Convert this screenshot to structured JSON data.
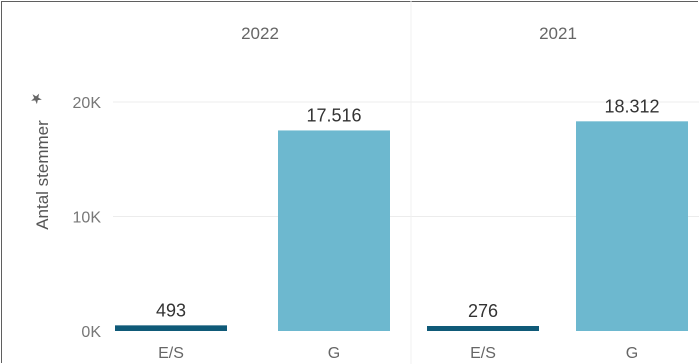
{
  "chart_data": {
    "type": "bar",
    "ylabel": "Antal stemmer",
    "ylim": [
      0,
      20000
    ],
    "yticks": [
      "0K",
      "10K",
      "20K"
    ],
    "groups": [
      {
        "name": "2022",
        "categories": [
          "E/S",
          "G"
        ],
        "values": [
          493,
          17516
        ],
        "labels": [
          "493",
          "17.516"
        ]
      },
      {
        "name": "2021",
        "categories": [
          "E/S",
          "G"
        ],
        "values": [
          276,
          18312
        ],
        "labels": [
          "276",
          "18.312"
        ]
      }
    ],
    "colors": {
      "E/S": "#0f5a78",
      "G": "#6db8cf"
    },
    "grid": true
  },
  "ui": {
    "pin_icon": "pin-icon"
  }
}
